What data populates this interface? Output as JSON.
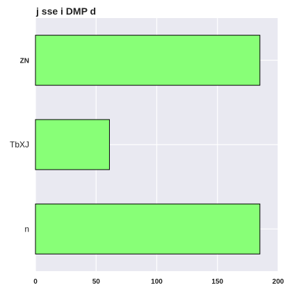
{
  "chart_data": {
    "type": "bar",
    "orientation": "horizontal",
    "title": "j sse i DMP d",
    "xlabel": "",
    "ylabel": "",
    "categories": [
      "ZN",
      "TbXJ",
      "n"
    ],
    "values": [
      185,
      61,
      185
    ],
    "xlim": [
      0,
      200
    ],
    "xticks": [
      0,
      50,
      100,
      150,
      200
    ],
    "grid": true,
    "legend": "none",
    "colors": {
      "bar_fill": "#88ff77",
      "bar_edge": "#000000",
      "plot_background": "#e9e9f1",
      "grid": "#ffffff"
    }
  }
}
